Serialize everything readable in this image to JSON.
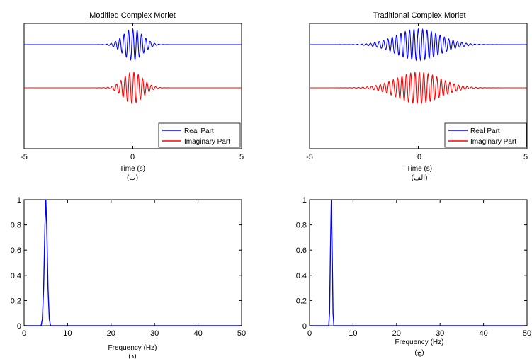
{
  "chart_data": [
    {
      "id": "tl",
      "type": "line",
      "title": "Modified Complex Morlet",
      "xlabel": "Time (s)",
      "caption": "(ب)",
      "xlim": [
        -5,
        5
      ],
      "xticks": [
        "-5",
        "0",
        "5"
      ],
      "yticks": [],
      "grid": false,
      "legend": "bottom-right",
      "signal": {
        "kind": "morlet",
        "center_freq_hz": 5,
        "envelope_sigma_s": 0.45
      },
      "series": [
        {
          "name": "Real Part",
          "color": "#0000ff",
          "part": "real"
        },
        {
          "name": "Imaginary Part",
          "color": "#ff0000",
          "part": "imag"
        }
      ]
    },
    {
      "id": "tr",
      "type": "line",
      "title": "Traditional Complex Morlet",
      "xlabel": "Time (s)",
      "caption": "(الف)",
      "xlim": [
        -5,
        5
      ],
      "xticks": [
        "-5",
        "0",
        "5"
      ],
      "yticks": [],
      "grid": false,
      "legend": "bottom-right",
      "signal": {
        "kind": "morlet",
        "center_freq_hz": 5,
        "envelope_sigma_s": 1.0
      },
      "series": [
        {
          "name": "Real Part",
          "color": "#0000ff",
          "part": "real"
        },
        {
          "name": "Imaginary Part",
          "color": "#ff0000",
          "part": "imag"
        }
      ]
    },
    {
      "id": "bl",
      "type": "line",
      "title": "",
      "xlabel": "Frequency (Hz)",
      "caption": "(د)",
      "xlim": [
        0,
        50
      ],
      "ylim": [
        0,
        1
      ],
      "xticks": [
        "0",
        "10",
        "20",
        "30",
        "40",
        "50"
      ],
      "yticks": [
        "0",
        "0.2",
        "0.4",
        "0.6",
        "0.8",
        "1"
      ],
      "grid": false,
      "series": [
        {
          "color": "#0000ff",
          "x": [
            0,
            3.9,
            4.2,
            4.5,
            4.8,
            5.0,
            5.2,
            5.5,
            5.8,
            6.1,
            50
          ],
          "y": [
            0,
            0,
            0.05,
            0.3,
            0.8,
            1.0,
            0.8,
            0.3,
            0.05,
            0,
            0
          ]
        }
      ]
    },
    {
      "id": "br",
      "type": "line",
      "title": "",
      "xlabel": "Frequency (Hz)",
      "caption": "(ج)",
      "xlim": [
        0,
        50
      ],
      "ylim": [
        0,
        1
      ],
      "xticks": [
        "0",
        "10",
        "20",
        "30",
        "40",
        "50"
      ],
      "yticks": [
        "0",
        "0.2",
        "0.4",
        "0.6",
        "0.8",
        "1"
      ],
      "grid": false,
      "series": [
        {
          "color": "#0000ff",
          "x": [
            0,
            4.4,
            4.6,
            4.8,
            5.0,
            5.2,
            5.4,
            5.6,
            50
          ],
          "y": [
            0,
            0,
            0.1,
            0.6,
            1.0,
            0.6,
            0.1,
            0,
            0
          ]
        }
      ]
    }
  ]
}
